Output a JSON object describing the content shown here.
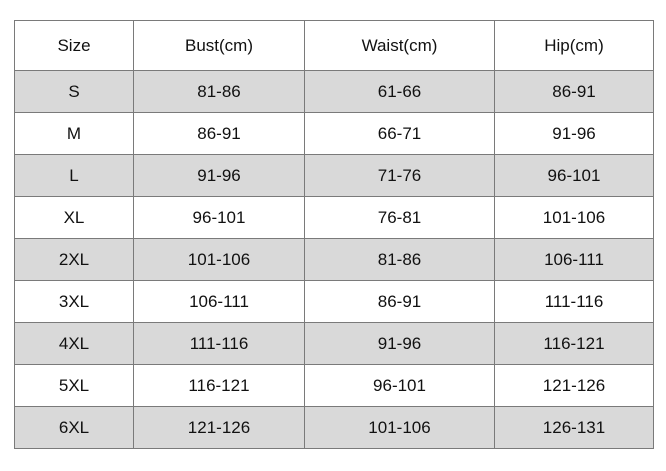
{
  "table": {
    "header": [
      "Size",
      "Bust(cm)",
      "Waist(cm)",
      "Hip(cm)"
    ],
    "rows": [
      [
        "S",
        "81-86",
        "61-66",
        "86-91"
      ],
      [
        "M",
        "86-91",
        "66-71",
        "91-96"
      ],
      [
        "L",
        "91-96",
        "71-76",
        "96-101"
      ],
      [
        "XL",
        "96-101",
        "76-81",
        "101-106"
      ],
      [
        "2XL",
        "101-106",
        "81-86",
        "106-111"
      ],
      [
        "3XL",
        "106-111",
        "86-91",
        "111-116"
      ],
      [
        "4XL",
        "111-116",
        "91-96",
        "116-121"
      ],
      [
        "5XL",
        "116-121",
        "96-101",
        "121-126"
      ],
      [
        "6XL",
        "121-126",
        "101-106",
        "126-131"
      ]
    ]
  }
}
